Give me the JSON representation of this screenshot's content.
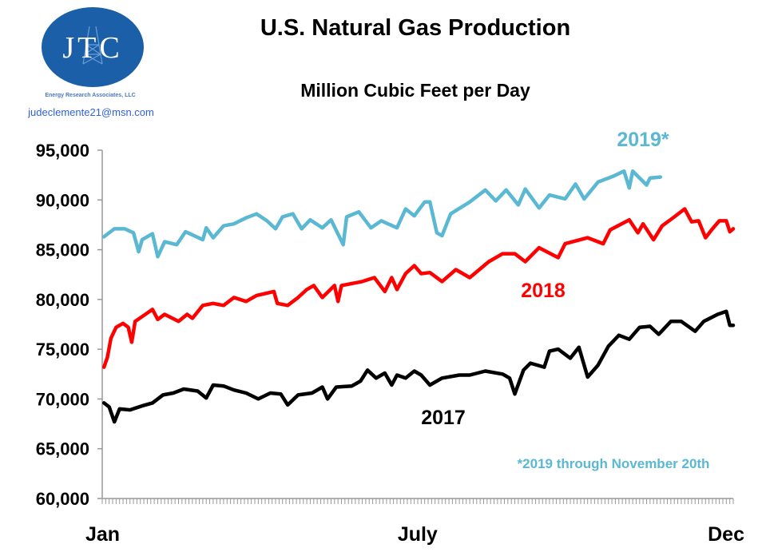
{
  "logo": {
    "letters": "JTC",
    "company": "Energy Research Associates, LLC",
    "email": "judeclemente21@msn.com",
    "color": "#1a5fa8"
  },
  "chart_data": {
    "type": "line",
    "title": "U.S. Natural Gas Production",
    "subtitle": "Million Cubic Feet per Day",
    "xlabel": "",
    "ylabel": "",
    "ylim": [
      60000,
      95000
    ],
    "yticks": [
      "60,000",
      "65,000",
      "70,000",
      "75,000",
      "80,000",
      "85,000",
      "90,000",
      "95,000"
    ],
    "ytick_values": [
      60000,
      65000,
      70000,
      75000,
      80000,
      85000,
      90000,
      95000
    ],
    "xticks": [
      {
        "label": "Jan",
        "date": "01-01"
      },
      {
        "label": "July",
        "date": "07-01"
      },
      {
        "label": "Dec",
        "date": "12-31"
      }
    ],
    "grid": false,
    "legend": "inline labels",
    "footnote": "*2019 through November 20th",
    "series": [
      {
        "name": "2019*",
        "color": "#5ab8d3",
        "points": [
          [
            "01-02",
            86300
          ],
          [
            "01-08",
            87100
          ],
          [
            "01-14",
            87100
          ],
          [
            "01-19",
            86700
          ],
          [
            "01-22",
            84800
          ],
          [
            "01-24",
            86000
          ],
          [
            "01-30",
            86600
          ],
          [
            "02-02",
            84300
          ],
          [
            "02-06",
            85800
          ],
          [
            "02-13",
            85500
          ],
          [
            "02-18",
            86800
          ],
          [
            "02-28",
            86000
          ],
          [
            "03-02",
            87200
          ],
          [
            "03-06",
            86200
          ],
          [
            "03-12",
            87400
          ],
          [
            "03-18",
            87600
          ],
          [
            "03-25",
            88200
          ],
          [
            "03-31",
            88600
          ],
          [
            "04-06",
            87900
          ],
          [
            "04-11",
            87100
          ],
          [
            "04-15",
            88300
          ],
          [
            "04-21",
            88600
          ],
          [
            "04-26",
            87100
          ],
          [
            "05-01",
            88000
          ],
          [
            "05-08",
            87200
          ],
          [
            "05-13",
            88000
          ],
          [
            "05-20",
            85500
          ],
          [
            "05-22",
            88300
          ],
          [
            "05-29",
            88800
          ],
          [
            "06-05",
            87200
          ],
          [
            "06-11",
            87900
          ],
          [
            "06-20",
            87200
          ],
          [
            "06-25",
            89100
          ],
          [
            "06-30",
            88400
          ],
          [
            "07-06",
            89800
          ],
          [
            "07-09",
            89800
          ],
          [
            "07-13",
            86700
          ],
          [
            "07-16",
            86400
          ],
          [
            "07-21",
            88600
          ],
          [
            "08-01",
            89800
          ],
          [
            "08-10",
            91000
          ],
          [
            "08-16",
            89900
          ],
          [
            "08-22",
            91000
          ],
          [
            "08-29",
            89500
          ],
          [
            "09-02",
            91100
          ],
          [
            "09-10",
            89200
          ],
          [
            "09-16",
            90500
          ],
          [
            "09-25",
            90100
          ],
          [
            "10-01",
            91600
          ],
          [
            "10-06",
            90100
          ],
          [
            "10-14",
            91800
          ],
          [
            "10-23",
            92400
          ],
          [
            "10-29",
            92900
          ],
          [
            "11-01",
            91200
          ],
          [
            "11-03",
            92900
          ],
          [
            "11-11",
            91500
          ],
          [
            "11-13",
            92200
          ],
          [
            "11-19",
            92300
          ]
        ]
      },
      {
        "name": "2018",
        "color": "#ff0000",
        "points": [
          [
            "01-02",
            73200
          ],
          [
            "01-04",
            74200
          ],
          [
            "01-06",
            76100
          ],
          [
            "01-09",
            77200
          ],
          [
            "01-13",
            77600
          ],
          [
            "01-16",
            77200
          ],
          [
            "01-18",
            75700
          ],
          [
            "01-20",
            77800
          ],
          [
            "01-25",
            78400
          ],
          [
            "01-30",
            79000
          ],
          [
            "02-02",
            78000
          ],
          [
            "02-06",
            78500
          ],
          [
            "02-14",
            77800
          ],
          [
            "02-19",
            78500
          ],
          [
            "02-22",
            78100
          ],
          [
            "02-28",
            79400
          ],
          [
            "03-06",
            79600
          ],
          [
            "03-12",
            79400
          ],
          [
            "03-18",
            80200
          ],
          [
            "03-25",
            79800
          ],
          [
            "03-31",
            80400
          ],
          [
            "04-10",
            80800
          ],
          [
            "04-12",
            79600
          ],
          [
            "04-18",
            79400
          ],
          [
            "04-24",
            80200
          ],
          [
            "04-29",
            81000
          ],
          [
            "05-03",
            81400
          ],
          [
            "05-08",
            80200
          ],
          [
            "05-15",
            81400
          ],
          [
            "05-17",
            79800
          ],
          [
            "05-19",
            81400
          ],
          [
            "05-25",
            81600
          ],
          [
            "05-31",
            81800
          ],
          [
            "06-07",
            82200
          ],
          [
            "06-13",
            80800
          ],
          [
            "06-17",
            82200
          ],
          [
            "06-20",
            81000
          ],
          [
            "06-25",
            82600
          ],
          [
            "06-30",
            83400
          ],
          [
            "07-04",
            82600
          ],
          [
            "07-09",
            82700
          ],
          [
            "07-16",
            81800
          ],
          [
            "07-24",
            83000
          ],
          [
            "08-01",
            82200
          ],
          [
            "08-12",
            83800
          ],
          [
            "08-20",
            84600
          ],
          [
            "08-27",
            84600
          ],
          [
            "09-02",
            83800
          ],
          [
            "09-10",
            85200
          ],
          [
            "09-21",
            84200
          ],
          [
            "09-25",
            85600
          ],
          [
            "10-08",
            86200
          ],
          [
            "10-17",
            85600
          ],
          [
            "10-21",
            87000
          ],
          [
            "11-01",
            88000
          ],
          [
            "11-06",
            86700
          ],
          [
            "11-09",
            87600
          ],
          [
            "11-15",
            86000
          ],
          [
            "11-20",
            87400
          ],
          [
            "11-27",
            88300
          ],
          [
            "12-03",
            89100
          ],
          [
            "12-07",
            87800
          ],
          [
            "12-11",
            87900
          ],
          [
            "12-15",
            86200
          ],
          [
            "12-19",
            87100
          ],
          [
            "12-23",
            87900
          ],
          [
            "12-27",
            87900
          ],
          [
            "12-29",
            86800
          ],
          [
            "12-31",
            87100
          ]
        ]
      },
      {
        "name": "2017",
        "color": "#000000",
        "points": [
          [
            "01-02",
            69600
          ],
          [
            "01-05",
            69200
          ],
          [
            "01-08",
            67700
          ],
          [
            "01-11",
            69000
          ],
          [
            "01-17",
            68900
          ],
          [
            "01-24",
            69300
          ],
          [
            "01-30",
            69600
          ],
          [
            "02-05",
            70400
          ],
          [
            "02-11",
            70600
          ],
          [
            "02-17",
            71000
          ],
          [
            "02-25",
            70800
          ],
          [
            "03-02",
            70100
          ],
          [
            "03-06",
            71400
          ],
          [
            "03-12",
            71300
          ],
          [
            "03-18",
            70900
          ],
          [
            "03-25",
            70600
          ],
          [
            "04-01",
            70000
          ],
          [
            "04-08",
            70600
          ],
          [
            "04-14",
            70500
          ],
          [
            "04-18",
            69400
          ],
          [
            "04-24",
            70400
          ],
          [
            "05-02",
            70600
          ],
          [
            "05-08",
            71200
          ],
          [
            "05-11",
            70000
          ],
          [
            "05-16",
            71200
          ],
          [
            "05-25",
            71300
          ],
          [
            "05-30",
            71800
          ],
          [
            "06-03",
            72900
          ],
          [
            "06-08",
            72100
          ],
          [
            "06-13",
            72600
          ],
          [
            "06-17",
            71400
          ],
          [
            "06-20",
            72400
          ],
          [
            "06-25",
            72100
          ],
          [
            "06-30",
            72800
          ],
          [
            "07-04",
            72400
          ],
          [
            "07-09",
            71400
          ],
          [
            "07-16",
            72100
          ],
          [
            "07-26",
            72400
          ],
          [
            "08-01",
            72400
          ],
          [
            "08-10",
            72800
          ],
          [
            "08-20",
            72500
          ],
          [
            "08-24",
            72100
          ],
          [
            "08-27",
            70500
          ],
          [
            "09-01",
            72900
          ],
          [
            "09-05",
            73600
          ],
          [
            "09-13",
            73200
          ],
          [
            "09-16",
            74800
          ],
          [
            "09-21",
            75000
          ],
          [
            "09-28",
            74100
          ],
          [
            "10-03",
            75200
          ],
          [
            "10-08",
            72200
          ],
          [
            "10-14",
            73400
          ],
          [
            "10-20",
            75300
          ],
          [
            "10-26",
            76400
          ],
          [
            "11-01",
            76000
          ],
          [
            "11-07",
            77200
          ],
          [
            "11-13",
            77300
          ],
          [
            "11-18",
            76500
          ],
          [
            "11-25",
            77800
          ],
          [
            "12-01",
            77800
          ],
          [
            "12-09",
            76800
          ],
          [
            "12-14",
            77800
          ],
          [
            "12-22",
            78500
          ],
          [
            "12-27",
            78800
          ],
          [
            "12-29",
            77400
          ],
          [
            "12-31",
            77400
          ]
        ]
      }
    ]
  }
}
